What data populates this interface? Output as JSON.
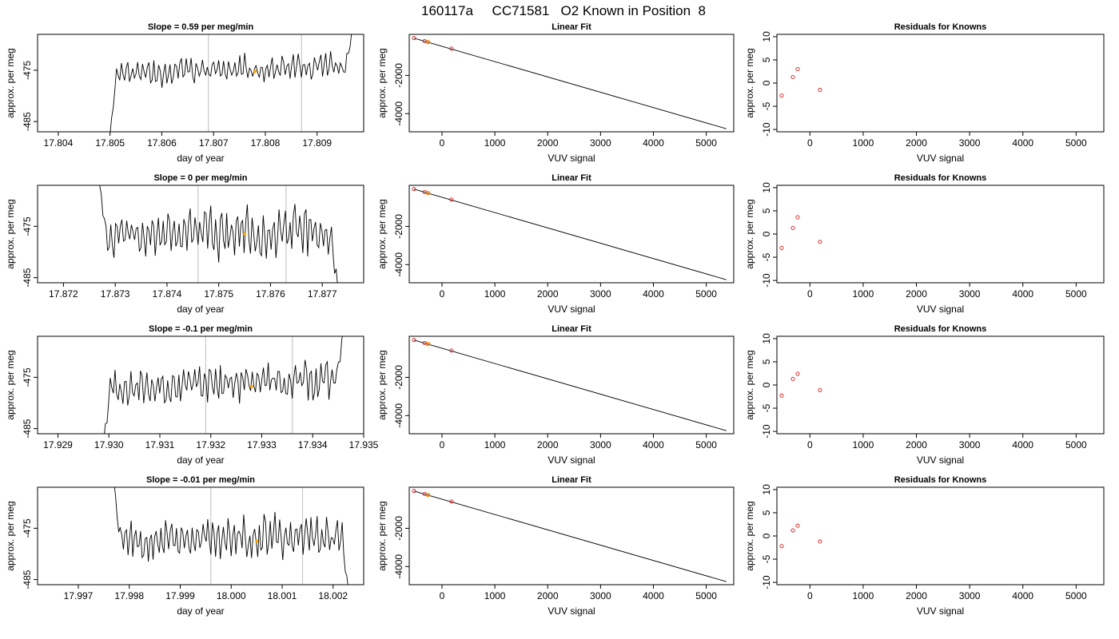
{
  "title": "160117a     CC71581   O2 Known in Position  8",
  "chart_data": [
    {
      "type": "line",
      "title": "Slope =  0.59  per meg/min",
      "xlabel": "day of year",
      "ylabel": "approx. per meg",
      "xlim": [
        17.8036,
        17.8099
      ],
      "ylim": [
        -487,
        -468
      ],
      "xticks": [
        "17.804",
        "17.805",
        "17.806",
        "17.807",
        "17.808",
        "17.809"
      ],
      "xtick_values": [
        17.804,
        17.805,
        17.806,
        17.807,
        17.808,
        17.809
      ],
      "yticks": [
        "-475",
        "-485"
      ],
      "ytick_values": [
        -475,
        -485
      ],
      "vlines": [
        17.8069,
        17.8087
      ],
      "marker": {
        "x": 17.8078,
        "y": -475.2,
        "color": "#ffa500"
      },
      "trace": {
        "x_start": 17.805,
        "x_end": 17.8097,
        "seed": 11,
        "mean": -475.5,
        "amp": 1.9,
        "start_y": -487.5,
        "end_y": -466,
        "rise": 1.2
      }
    },
    {
      "type": "scatter",
      "title": "Linear Fit",
      "xlabel": "VUV signal",
      "ylabel": "approx. per meg",
      "xlim": [
        -620,
        5520
      ],
      "ylim": [
        -4950,
        150
      ],
      "xticks": [
        "0",
        "1000",
        "2000",
        "3000",
        "4000",
        "5000"
      ],
      "xtick_values": [
        0,
        1000,
        2000,
        3000,
        4000,
        5000
      ],
      "yticks": [
        "-2000",
        "-4000"
      ],
      "ytick_values": [
        -2000,
        -4000
      ],
      "fit_line": [
        [
          -530,
          -50
        ],
        [
          5380,
          -4790
        ]
      ],
      "points": [
        [
          -530,
          -45
        ],
        [
          -330,
          -205
        ],
        [
          -270,
          -250
        ],
        [
          180,
          -600
        ]
      ],
      "highlight": [
        [
          -260,
          -255
        ]
      ]
    },
    {
      "type": "scatter",
      "title": "Residuals for Knowns",
      "xlabel": "VUV signal",
      "ylabel": "approx. per meg",
      "xlim": [
        -620,
        5520
      ],
      "ylim": [
        -10.5,
        10.5
      ],
      "xticks": [
        "0",
        "1000",
        "2000",
        "3000",
        "4000",
        "5000"
      ],
      "xtick_values": [
        0,
        1000,
        2000,
        3000,
        4000,
        5000
      ],
      "yticks": [
        "-10",
        "-5",
        "0",
        "5",
        "10"
      ],
      "ytick_values": [
        -10,
        -5,
        0,
        5,
        10
      ],
      "points": [
        [
          -530,
          -2.7
        ],
        [
          -320,
          1.3
        ],
        [
          -230,
          3.0
        ],
        [
          190,
          -1.5
        ]
      ]
    },
    {
      "type": "line",
      "title": "Slope =  0  per meg/min",
      "xlabel": "day of year",
      "ylabel": "approx. per meg",
      "xlim": [
        17.8715,
        17.8778
      ],
      "ylim": [
        -486,
        -467
      ],
      "xticks": [
        "17.872",
        "17.873",
        "17.874",
        "17.875",
        "17.876",
        "17.877"
      ],
      "xtick_values": [
        17.872,
        17.873,
        17.874,
        17.875,
        17.876,
        17.877
      ],
      "yticks": [
        "-475",
        "-485"
      ],
      "ytick_values": [
        -475,
        -485
      ],
      "vlines": [
        17.8746,
        17.8763
      ],
      "marker": {
        "x": 17.8755,
        "y": -476.5,
        "color": "#ffa500"
      },
      "trace": {
        "x_start": 17.8727,
        "x_end": 17.8773,
        "seed": 23,
        "mean": -476,
        "amp": 3.6,
        "start_y": -467,
        "end_y": -487,
        "rise": 0
      }
    },
    {
      "type": "scatter",
      "title": "Linear Fit",
      "xlabel": "VUV signal",
      "ylabel": "approx. per meg",
      "xlim": [
        -620,
        5520
      ],
      "ylim": [
        -4950,
        150
      ],
      "xticks": [
        "0",
        "1000",
        "2000",
        "3000",
        "4000",
        "5000"
      ],
      "xtick_values": [
        0,
        1000,
        2000,
        3000,
        4000,
        5000
      ],
      "yticks": [
        "-2000",
        "-4000"
      ],
      "ytick_values": [
        -2000,
        -4000
      ],
      "fit_line": [
        [
          -530,
          -50
        ],
        [
          5380,
          -4790
        ]
      ],
      "points": [
        [
          -530,
          -45
        ],
        [
          -330,
          -205
        ],
        [
          -270,
          -250
        ],
        [
          180,
          -600
        ]
      ],
      "highlight": [
        [
          -260,
          -255
        ]
      ]
    },
    {
      "type": "scatter",
      "title": "Residuals for Knowns",
      "xlabel": "VUV signal",
      "ylabel": "approx. per meg",
      "xlim": [
        -620,
        5520
      ],
      "ylim": [
        -10.5,
        10.5
      ],
      "xticks": [
        "0",
        "1000",
        "2000",
        "3000",
        "4000",
        "5000"
      ],
      "xtick_values": [
        0,
        1000,
        2000,
        3000,
        4000,
        5000
      ],
      "yticks": [
        "-10",
        "-5",
        "0",
        "5",
        "10"
      ],
      "ytick_values": [
        -10,
        -5,
        0,
        5,
        10
      ],
      "points": [
        [
          -530,
          -3.0
        ],
        [
          -320,
          1.3
        ],
        [
          -230,
          3.6
        ],
        [
          190,
          -1.7
        ]
      ]
    },
    {
      "type": "line",
      "title": "Slope =  -0.1  per meg/min",
      "xlabel": "day of year",
      "ylabel": "approx. per meg",
      "xlim": [
        17.9286,
        17.935
      ],
      "ylim": [
        -486,
        -467
      ],
      "xticks": [
        "17.929",
        "17.930",
        "17.931",
        "17.932",
        "17.933",
        "17.934",
        "17.935"
      ],
      "xtick_values": [
        17.929,
        17.93,
        17.931,
        17.932,
        17.933,
        17.934,
        17.935
      ],
      "yticks": [
        "-475",
        "-485"
      ],
      "ytick_values": [
        -475,
        -485
      ],
      "vlines": [
        17.9319,
        17.9336
      ],
      "marker": {
        "x": 17.9328,
        "y": -476.8,
        "color": "#ffa500"
      },
      "trace": {
        "x_start": 17.9299,
        "x_end": 17.9346,
        "seed": 37,
        "mean": -476.5,
        "amp": 2.8,
        "start_y": -487,
        "end_y": -466,
        "rise": 0.8
      }
    },
    {
      "type": "scatter",
      "title": "Linear Fit",
      "xlabel": "VUV signal",
      "ylabel": "approx. per meg",
      "xlim": [
        -620,
        5520
      ],
      "ylim": [
        -4950,
        150
      ],
      "xticks": [
        "0",
        "1000",
        "2000",
        "3000",
        "4000",
        "5000"
      ],
      "xtick_values": [
        0,
        1000,
        2000,
        3000,
        4000,
        5000
      ],
      "yticks": [
        "-2000",
        "-4000"
      ],
      "ytick_values": [
        -2000,
        -4000
      ],
      "fit_line": [
        [
          -530,
          -50
        ],
        [
          5380,
          -4790
        ]
      ],
      "points": [
        [
          -530,
          -45
        ],
        [
          -330,
          -205
        ],
        [
          -270,
          -250
        ],
        [
          180,
          -600
        ]
      ],
      "highlight": [
        [
          -260,
          -255
        ]
      ]
    },
    {
      "type": "scatter",
      "title": "Residuals for Knowns",
      "xlabel": "VUV signal",
      "ylabel": "approx. per meg",
      "xlim": [
        -620,
        5520
      ],
      "ylim": [
        -10.5,
        10.5
      ],
      "xticks": [
        "0",
        "1000",
        "2000",
        "3000",
        "4000",
        "5000"
      ],
      "xtick_values": [
        0,
        1000,
        2000,
        3000,
        4000,
        5000
      ],
      "yticks": [
        "-10",
        "-5",
        "0",
        "5",
        "10"
      ],
      "ytick_values": [
        -10,
        -5,
        0,
        5,
        10
      ],
      "points": [
        [
          -530,
          -2.3
        ],
        [
          -320,
          1.3
        ],
        [
          -230,
          2.4
        ],
        [
          190,
          -1.1
        ]
      ]
    },
    {
      "type": "line",
      "title": "Slope =  -0.01  per meg/min",
      "xlabel": "day of year",
      "ylabel": "approx. per meg",
      "xlim": [
        17.9962,
        18.0026
      ],
      "ylim": [
        -486,
        -467
      ],
      "xticks": [
        "17.997",
        "17.998",
        "17.999",
        "18.000",
        "18.001",
        "18.002"
      ],
      "xtick_values": [
        17.997,
        17.998,
        17.999,
        18.0,
        18.001,
        18.002
      ],
      "yticks": [
        "-475",
        "-485"
      ],
      "ytick_values": [
        -475,
        -485
      ],
      "vlines": [
        17.9996,
        18.0014
      ],
      "marker": {
        "x": 18.0005,
        "y": -477.5,
        "color": "#ffa500"
      },
      "trace": {
        "x_start": 17.9977,
        "x_end": 18.0023,
        "seed": 53,
        "mean": -477,
        "amp": 3.0,
        "start_y": -466,
        "end_y": -487,
        "rise": 0
      }
    },
    {
      "type": "scatter",
      "title": "Linear Fit",
      "xlabel": "VUV signal",
      "ylabel": "approx. per meg",
      "xlim": [
        -620,
        5520
      ],
      "ylim": [
        -4950,
        150
      ],
      "xticks": [
        "0",
        "1000",
        "2000",
        "3000",
        "4000",
        "5000"
      ],
      "xtick_values": [
        0,
        1000,
        2000,
        3000,
        4000,
        5000
      ],
      "yticks": [
        "-2000",
        "-4000"
      ],
      "ytick_values": [
        -2000,
        -4000
      ],
      "fit_line": [
        [
          -530,
          -50
        ],
        [
          5380,
          -4790
        ]
      ],
      "points": [
        [
          -530,
          -45
        ],
        [
          -330,
          -205
        ],
        [
          -270,
          -250
        ],
        [
          180,
          -600
        ]
      ],
      "highlight": [
        [
          -260,
          -255
        ]
      ]
    },
    {
      "type": "scatter",
      "title": "Residuals for Knowns",
      "xlabel": "VUV signal",
      "ylabel": "approx. per meg",
      "xlim": [
        -620,
        5520
      ],
      "ylim": [
        -10.5,
        10.5
      ],
      "xticks": [
        "0",
        "1000",
        "2000",
        "3000",
        "4000",
        "5000"
      ],
      "xtick_values": [
        0,
        1000,
        2000,
        3000,
        4000,
        5000
      ],
      "yticks": [
        "-10",
        "-5",
        "0",
        "5",
        "10"
      ],
      "ytick_values": [
        -10,
        -5,
        0,
        5,
        10
      ],
      "points": [
        [
          -530,
          -2.2
        ],
        [
          -320,
          1.2
        ],
        [
          -230,
          2.2
        ],
        [
          190,
          -1.2
        ]
      ]
    }
  ]
}
